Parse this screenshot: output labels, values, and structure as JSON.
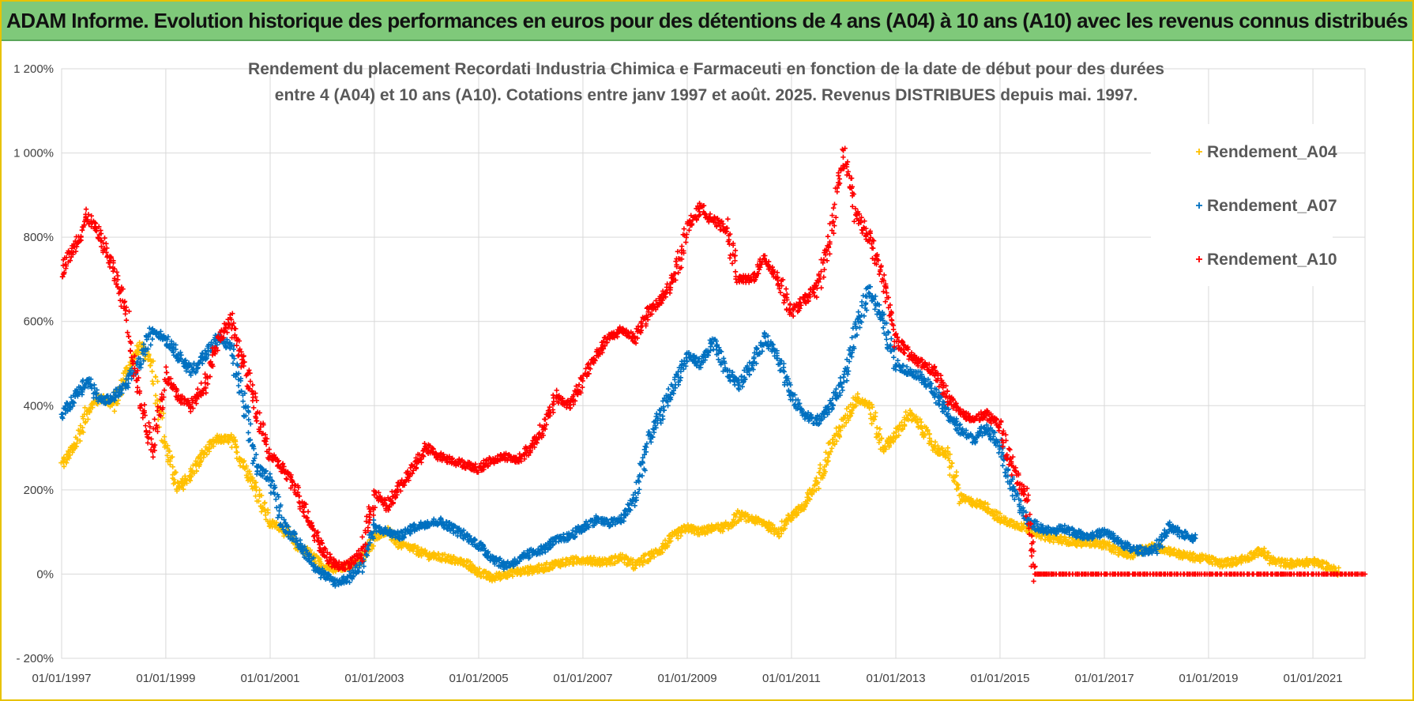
{
  "header": {
    "title": "ADAM Informe. Evolution historique des performances en euros pour des détentions de 4 ans (A04) à 10 ans (A10) avec les revenus connus distribués"
  },
  "chart_data": {
    "type": "scatter",
    "title_lines": [
      "Rendement du placement Recordati Industria Chimica e Farmaceuti en fonction de la date de début pour des durées",
      "entre 4 (A04) et 10 ans (A10). Cotations entre janv 1997 et août. 2025. Revenus DISTRIBUES depuis mai. 1997."
    ],
    "xlabel": "",
    "ylabel": "",
    "x_ticks": [
      "01/01/1997",
      "01/01/1999",
      "01/01/2001",
      "01/01/2003",
      "01/01/2005",
      "01/01/2007",
      "01/01/2009",
      "01/01/2011",
      "01/01/2013",
      "01/01/2015",
      "01/01/2017",
      "01/01/2019",
      "01/01/2021"
    ],
    "y_ticks": [
      "1 200%",
      "1 000%",
      "800%",
      "600%",
      "400%",
      "200%",
      "0%",
      "- 200%"
    ],
    "xlim": [
      "1997-01-01",
      "2022-01-01"
    ],
    "ylim": [
      -200,
      1200
    ],
    "grid": true,
    "legend_position": "top-right",
    "marker": "+",
    "series": [
      {
        "name": "Rendement_A04",
        "color": "#ffc000",
        "points": [
          [
            "1997-01-01",
            260
          ],
          [
            "1997-04-01",
            300
          ],
          [
            "1997-07-01",
            390
          ],
          [
            "1997-10-01",
            420
          ],
          [
            "1998-01-01",
            400
          ],
          [
            "1998-04-01",
            480
          ],
          [
            "1998-07-01",
            540
          ],
          [
            "1998-10-01",
            500
          ],
          [
            "1999-01-01",
            300
          ],
          [
            "1999-04-01",
            200
          ],
          [
            "1999-07-01",
            240
          ],
          [
            "1999-10-01",
            290
          ],
          [
            "2000-01-01",
            320
          ],
          [
            "2000-04-01",
            320
          ],
          [
            "2000-07-01",
            260
          ],
          [
            "2000-10-01",
            200
          ],
          [
            "2001-01-01",
            120
          ],
          [
            "2001-04-01",
            110
          ],
          [
            "2001-07-01",
            70
          ],
          [
            "2001-10-01",
            50
          ],
          [
            "2002-01-01",
            20
          ],
          [
            "2002-04-01",
            10
          ],
          [
            "2002-07-01",
            20
          ],
          [
            "2002-10-01",
            30
          ],
          [
            "2003-01-01",
            90
          ],
          [
            "2003-04-01",
            100
          ],
          [
            "2003-07-01",
            70
          ],
          [
            "2003-10-01",
            60
          ],
          [
            "2004-01-01",
            45
          ],
          [
            "2004-04-01",
            40
          ],
          [
            "2004-07-01",
            35
          ],
          [
            "2004-10-01",
            25
          ],
          [
            "2005-01-01",
            5
          ],
          [
            "2005-04-01",
            -10
          ],
          [
            "2005-07-01",
            0
          ],
          [
            "2005-10-01",
            5
          ],
          [
            "2006-01-01",
            10
          ],
          [
            "2006-04-01",
            15
          ],
          [
            "2006-07-01",
            25
          ],
          [
            "2006-10-01",
            30
          ],
          [
            "2007-01-01",
            35
          ],
          [
            "2007-04-01",
            30
          ],
          [
            "2007-07-01",
            30
          ],
          [
            "2007-10-01",
            40
          ],
          [
            "2008-01-01",
            20
          ],
          [
            "2008-04-01",
            40
          ],
          [
            "2008-07-01",
            60
          ],
          [
            "2008-10-01",
            90
          ],
          [
            "2009-01-01",
            110
          ],
          [
            "2009-04-01",
            100
          ],
          [
            "2009-07-01",
            110
          ],
          [
            "2009-10-01",
            110
          ],
          [
            "2010-01-01",
            140
          ],
          [
            "2010-04-01",
            130
          ],
          [
            "2010-07-01",
            120
          ],
          [
            "2010-10-01",
            100
          ],
          [
            "2011-01-01",
            140
          ],
          [
            "2011-04-01",
            160
          ],
          [
            "2011-07-01",
            220
          ],
          [
            "2011-10-01",
            300
          ],
          [
            "2012-01-01",
            360
          ],
          [
            "2012-04-01",
            420
          ],
          [
            "2012-07-01",
            400
          ],
          [
            "2012-10-01",
            300
          ],
          [
            "2013-01-01",
            330
          ],
          [
            "2013-04-01",
            380
          ],
          [
            "2013-07-01",
            350
          ],
          [
            "2013-10-01",
            300
          ],
          [
            "2014-01-01",
            280
          ],
          [
            "2014-04-01",
            180
          ],
          [
            "2014-07-01",
            170
          ],
          [
            "2014-10-01",
            160
          ],
          [
            "2015-01-01",
            130
          ],
          [
            "2015-04-01",
            120
          ],
          [
            "2015-07-01",
            110
          ],
          [
            "2015-10-01",
            95
          ],
          [
            "2016-01-01",
            85
          ],
          [
            "2016-04-01",
            80
          ],
          [
            "2016-07-01",
            75
          ],
          [
            "2016-10-01",
            75
          ],
          [
            "2017-01-01",
            70
          ],
          [
            "2017-04-01",
            55
          ],
          [
            "2017-07-01",
            45
          ],
          [
            "2017-10-01",
            60
          ],
          [
            "2018-01-01",
            65
          ],
          [
            "2018-04-01",
            55
          ],
          [
            "2018-07-01",
            45
          ],
          [
            "2018-10-01",
            40
          ],
          [
            "2019-01-01",
            35
          ],
          [
            "2019-04-01",
            25
          ],
          [
            "2019-07-01",
            30
          ],
          [
            "2019-10-01",
            40
          ],
          [
            "2020-01-01",
            55
          ],
          [
            "2020-04-01",
            30
          ],
          [
            "2020-07-01",
            25
          ],
          [
            "2020-10-01",
            25
          ],
          [
            "2021-01-01",
            30
          ],
          [
            "2021-04-01",
            20
          ],
          [
            "2021-07-01",
            5
          ]
        ]
      },
      {
        "name": "Rendement_A07",
        "color": "#0070c0",
        "points": [
          [
            "1997-01-01",
            380
          ],
          [
            "1997-04-01",
            420
          ],
          [
            "1997-07-01",
            460
          ],
          [
            "1997-10-01",
            410
          ],
          [
            "1998-01-01",
            420
          ],
          [
            "1998-04-01",
            450
          ],
          [
            "1998-07-01",
            500
          ],
          [
            "1998-10-01",
            580
          ],
          [
            "1999-01-01",
            560
          ],
          [
            "1999-04-01",
            520
          ],
          [
            "1999-07-01",
            480
          ],
          [
            "1999-10-01",
            520
          ],
          [
            "2000-01-01",
            560
          ],
          [
            "2000-04-01",
            540
          ],
          [
            "2000-07-01",
            400
          ],
          [
            "2000-10-01",
            250
          ],
          [
            "2001-01-01",
            230
          ],
          [
            "2001-04-01",
            120
          ],
          [
            "2001-07-01",
            80
          ],
          [
            "2001-10-01",
            40
          ],
          [
            "2002-01-01",
            0
          ],
          [
            "2002-04-01",
            -20
          ],
          [
            "2002-07-01",
            -10
          ],
          [
            "2002-10-01",
            20
          ],
          [
            "2003-01-01",
            110
          ],
          [
            "2003-04-01",
            100
          ],
          [
            "2003-07-01",
            90
          ],
          [
            "2003-10-01",
            110
          ],
          [
            "2004-01-01",
            120
          ],
          [
            "2004-04-01",
            125
          ],
          [
            "2004-07-01",
            110
          ],
          [
            "2004-10-01",
            90
          ],
          [
            "2005-01-01",
            70
          ],
          [
            "2005-04-01",
            40
          ],
          [
            "2005-07-01",
            20
          ],
          [
            "2005-10-01",
            30
          ],
          [
            "2006-01-01",
            50
          ],
          [
            "2006-04-01",
            60
          ],
          [
            "2006-07-01",
            80
          ],
          [
            "2006-10-01",
            90
          ],
          [
            "2007-01-01",
            110
          ],
          [
            "2007-04-01",
            130
          ],
          [
            "2007-07-01",
            120
          ],
          [
            "2007-10-01",
            130
          ],
          [
            "2008-01-01",
            180
          ],
          [
            "2008-04-01",
            320
          ],
          [
            "2008-07-01",
            380
          ],
          [
            "2008-10-01",
            450
          ],
          [
            "2009-01-01",
            520
          ],
          [
            "2009-04-01",
            500
          ],
          [
            "2009-07-01",
            550
          ],
          [
            "2009-10-01",
            480
          ],
          [
            "2010-01-01",
            450
          ],
          [
            "2010-04-01",
            500
          ],
          [
            "2010-07-01",
            560
          ],
          [
            "2010-10-01",
            520
          ],
          [
            "2011-01-01",
            420
          ],
          [
            "2011-04-01",
            380
          ],
          [
            "2011-07-01",
            360
          ],
          [
            "2011-10-01",
            400
          ],
          [
            "2012-01-01",
            460
          ],
          [
            "2012-04-01",
            580
          ],
          [
            "2012-07-01",
            680
          ],
          [
            "2012-10-01",
            600
          ],
          [
            "2013-01-01",
            500
          ],
          [
            "2013-04-01",
            480
          ],
          [
            "2013-07-01",
            470
          ],
          [
            "2013-10-01",
            430
          ],
          [
            "2014-01-01",
            380
          ],
          [
            "2014-04-01",
            340
          ],
          [
            "2014-07-01",
            320
          ],
          [
            "2014-10-01",
            350
          ],
          [
            "2015-01-01",
            300
          ],
          [
            "2015-04-01",
            200
          ],
          [
            "2015-07-01",
            130
          ],
          [
            "2015-10-01",
            110
          ],
          [
            "2016-01-01",
            100
          ],
          [
            "2016-04-01",
            110
          ],
          [
            "2016-07-01",
            95
          ],
          [
            "2016-10-01",
            90
          ],
          [
            "2017-01-01",
            100
          ],
          [
            "2017-04-01",
            80
          ],
          [
            "2017-07-01",
            60
          ],
          [
            "2017-10-01",
            55
          ],
          [
            "2018-01-01",
            60
          ],
          [
            "2018-04-01",
            110
          ],
          [
            "2018-07-01",
            95
          ],
          [
            "2018-10-01",
            85
          ]
        ]
      },
      {
        "name": "Rendement_A10",
        "color": "#ff0000",
        "points": [
          [
            "1997-01-01",
            720
          ],
          [
            "1997-04-01",
            780
          ],
          [
            "1997-07-01",
            850
          ],
          [
            "1997-10-01",
            800
          ],
          [
            "1998-01-01",
            720
          ],
          [
            "1998-04-01",
            620
          ],
          [
            "1998-07-01",
            420
          ],
          [
            "1998-10-01",
            300
          ],
          [
            "1999-01-01",
            470
          ],
          [
            "1999-04-01",
            420
          ],
          [
            "1999-07-01",
            400
          ],
          [
            "1999-10-01",
            450
          ],
          [
            "2000-01-01",
            560
          ],
          [
            "2000-04-01",
            600
          ],
          [
            "2000-07-01",
            500
          ],
          [
            "2000-10-01",
            380
          ],
          [
            "2001-01-01",
            280
          ],
          [
            "2001-04-01",
            250
          ],
          [
            "2001-07-01",
            200
          ],
          [
            "2001-10-01",
            130
          ],
          [
            "2002-01-01",
            60
          ],
          [
            "2002-04-01",
            20
          ],
          [
            "2002-07-01",
            20
          ],
          [
            "2002-10-01",
            50
          ],
          [
            "2003-01-01",
            190
          ],
          [
            "2003-04-01",
            160
          ],
          [
            "2003-07-01",
            210
          ],
          [
            "2003-10-01",
            250
          ],
          [
            "2004-01-01",
            300
          ],
          [
            "2004-04-01",
            280
          ],
          [
            "2004-07-01",
            270
          ],
          [
            "2004-10-01",
            260
          ],
          [
            "2005-01-01",
            250
          ],
          [
            "2005-04-01",
            270
          ],
          [
            "2005-07-01",
            280
          ],
          [
            "2005-10-01",
            270
          ],
          [
            "2006-01-01",
            300
          ],
          [
            "2006-04-01",
            350
          ],
          [
            "2006-07-01",
            420
          ],
          [
            "2006-10-01",
            400
          ],
          [
            "2007-01-01",
            460
          ],
          [
            "2007-04-01",
            520
          ],
          [
            "2007-07-01",
            560
          ],
          [
            "2007-10-01",
            580
          ],
          [
            "2008-01-01",
            560
          ],
          [
            "2008-04-01",
            620
          ],
          [
            "2008-07-01",
            650
          ],
          [
            "2008-10-01",
            700
          ],
          [
            "2009-01-01",
            820
          ],
          [
            "2009-04-01",
            870
          ],
          [
            "2009-07-01",
            840
          ],
          [
            "2009-10-01",
            820
          ],
          [
            "2010-01-01",
            700
          ],
          [
            "2010-04-01",
            700
          ],
          [
            "2010-07-01",
            750
          ],
          [
            "2010-10-01",
            700
          ],
          [
            "2011-01-01",
            620
          ],
          [
            "2011-04-01",
            650
          ],
          [
            "2011-07-01",
            680
          ],
          [
            "2011-10-01",
            800
          ],
          [
            "2012-01-01",
            1000
          ],
          [
            "2012-04-01",
            850
          ],
          [
            "2012-07-01",
            800
          ],
          [
            "2012-10-01",
            700
          ],
          [
            "2013-01-01",
            560
          ],
          [
            "2013-04-01",
            520
          ],
          [
            "2013-07-01",
            500
          ],
          [
            "2013-10-01",
            480
          ],
          [
            "2014-01-01",
            420
          ],
          [
            "2014-04-01",
            380
          ],
          [
            "2014-07-01",
            370
          ],
          [
            "2014-10-01",
            380
          ],
          [
            "2015-01-01",
            350
          ],
          [
            "2015-04-01",
            250
          ],
          [
            "2015-07-01",
            190
          ],
          [
            "2015-09-01",
            0
          ],
          [
            "2016-01-01",
            0
          ],
          [
            "2016-07-01",
            0
          ],
          [
            "2017-01-01",
            0
          ],
          [
            "2017-07-01",
            0
          ],
          [
            "2018-01-01",
            0
          ],
          [
            "2018-07-01",
            0
          ],
          [
            "2019-01-01",
            0
          ],
          [
            "2019-07-01",
            0
          ],
          [
            "2020-01-01",
            0
          ],
          [
            "2020-07-01",
            0
          ],
          [
            "2021-01-01",
            0
          ],
          [
            "2021-07-01",
            0
          ],
          [
            "2022-01-01",
            0
          ]
        ]
      }
    ]
  }
}
